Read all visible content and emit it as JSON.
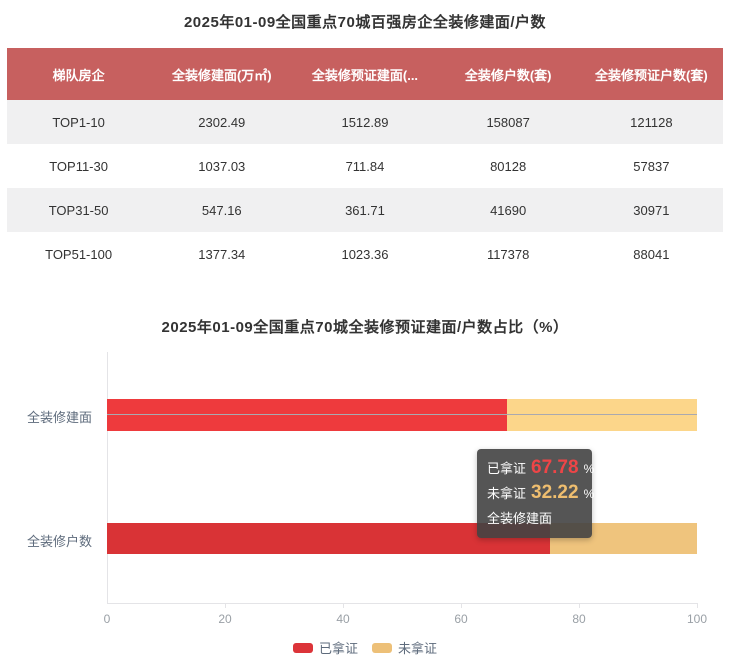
{
  "theme": {
    "text_dark": "#333333",
    "table_header_bg": "#c7605f",
    "table_row_alt_bg": "#f0f0f1",
    "axis_label": "#5e6b7c",
    "tick_label": "#9aa0a6",
    "axis_line": "#e4e4e7",
    "pointer_line": "#a9a9b0",
    "tooltip_bg": "rgba(66,66,66,0.9)",
    "tooltip_value_red": "#ee4547",
    "tooltip_value_tan": "#efbe6f"
  },
  "table_section": {
    "title": "2025年01-09全国重点70城百强房企全装修建面/户数",
    "header": [
      "梯队房企",
      "全装修建面(万㎡)",
      "全装修预证建面(...",
      "全装修户数(套)",
      "全装修预证户数(套)"
    ],
    "rows": [
      [
        "TOP1-10",
        "2302.49",
        "1512.89",
        "158087",
        "121128"
      ],
      [
        "TOP11-30",
        "1037.03",
        "711.84",
        "80128",
        "57837"
      ],
      [
        "TOP31-50",
        "547.16",
        "361.71",
        "41690",
        "30971"
      ],
      [
        "TOP51-100",
        "1377.34",
        "1023.36",
        "117378",
        "88041"
      ]
    ]
  },
  "chart_section": {
    "title": "2025年01-09全国重点70城全装修预证建面/户数占比（%）"
  },
  "chart_data": {
    "type": "bar",
    "orientation": "horizontal",
    "stacked": true,
    "title": "2025年01-09全国重点70城全装修预证建面/户数占比（%）",
    "categories": [
      "全装修建面",
      "全装修户数"
    ],
    "series": [
      {
        "name": "已拿证",
        "values": [
          67.78,
          75.0
        ],
        "color": "#dc3439",
        "bar_colors": [
          "#ee3a3d",
          "#d93336"
        ]
      },
      {
        "name": "未拿证",
        "values": [
          32.22,
          25.0
        ],
        "color": "#edc078",
        "bar_colors": [
          "#fcd68a",
          "#efc47d"
        ]
      }
    ],
    "xlim": [
      0,
      100
    ],
    "x_ticks": [
      "0",
      "20",
      "40",
      "60",
      "80",
      "100"
    ],
    "grid": false,
    "legend": [
      "已拿证",
      "未拿证"
    ],
    "legend_position": "bottom"
  },
  "tooltip": {
    "rows": [
      {
        "label": "已拿证",
        "value": "67.78",
        "unit": "%"
      },
      {
        "label": "未拿证",
        "value": "32.22",
        "unit": "%"
      }
    ],
    "footer": "全装修建面"
  }
}
